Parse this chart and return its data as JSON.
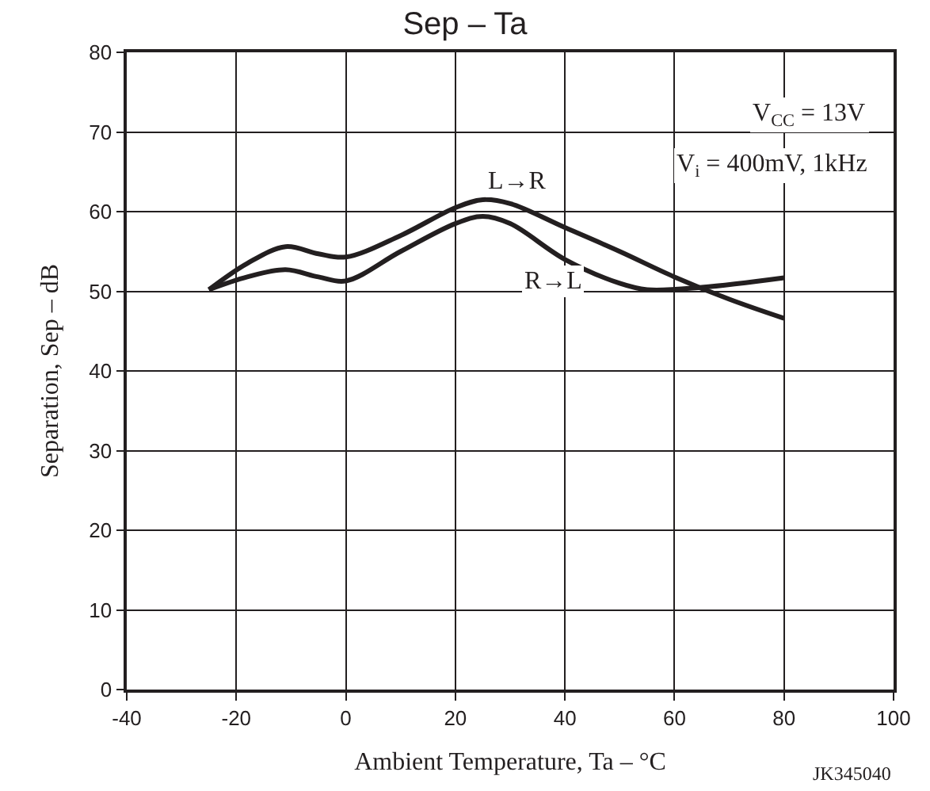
{
  "chart_data": {
    "type": "line",
    "title": "Sep – Ta",
    "xlabel": "Ambient Temperature, Ta – °C",
    "ylabel": "Separation, Sep – dB",
    "series": [
      {
        "name": "L→R",
        "color": "#231f20",
        "x": [
          -25,
          -18,
          -11,
          -5,
          0,
          10,
          20,
          25,
          30,
          40,
          50,
          60,
          70,
          80
        ],
        "values": [
          50.2,
          53.5,
          55.6,
          54.7,
          54.3,
          57,
          60.5,
          61.5,
          61,
          58,
          55,
          51.8,
          49,
          46.6
        ]
      },
      {
        "name": "R→L",
        "color": "#231f20",
        "x": [
          -25,
          -18,
          -11,
          -5,
          0,
          10,
          20,
          25,
          30,
          40,
          50,
          55,
          65,
          80
        ],
        "values": [
          50.2,
          51.8,
          52.7,
          51.8,
          51.3,
          55,
          58.5,
          59.4,
          58.5,
          54,
          51,
          50.2,
          50.5,
          51.7
        ]
      }
    ],
    "xlim": [
      -40,
      100
    ],
    "xticks": [
      -40,
      -20,
      0,
      20,
      40,
      60,
      80,
      100
    ],
    "ylim": [
      0,
      80
    ],
    "yticks": [
      0,
      10,
      20,
      30,
      40,
      50,
      60,
      70,
      80
    ],
    "grid": true,
    "legend": false,
    "marker": "none",
    "line_style": "solid",
    "annotations": [
      "V$_{CC}$ = 13V",
      "V$_{i}$ = 400mV, 1kHz",
      "JK345040"
    ]
  }
}
